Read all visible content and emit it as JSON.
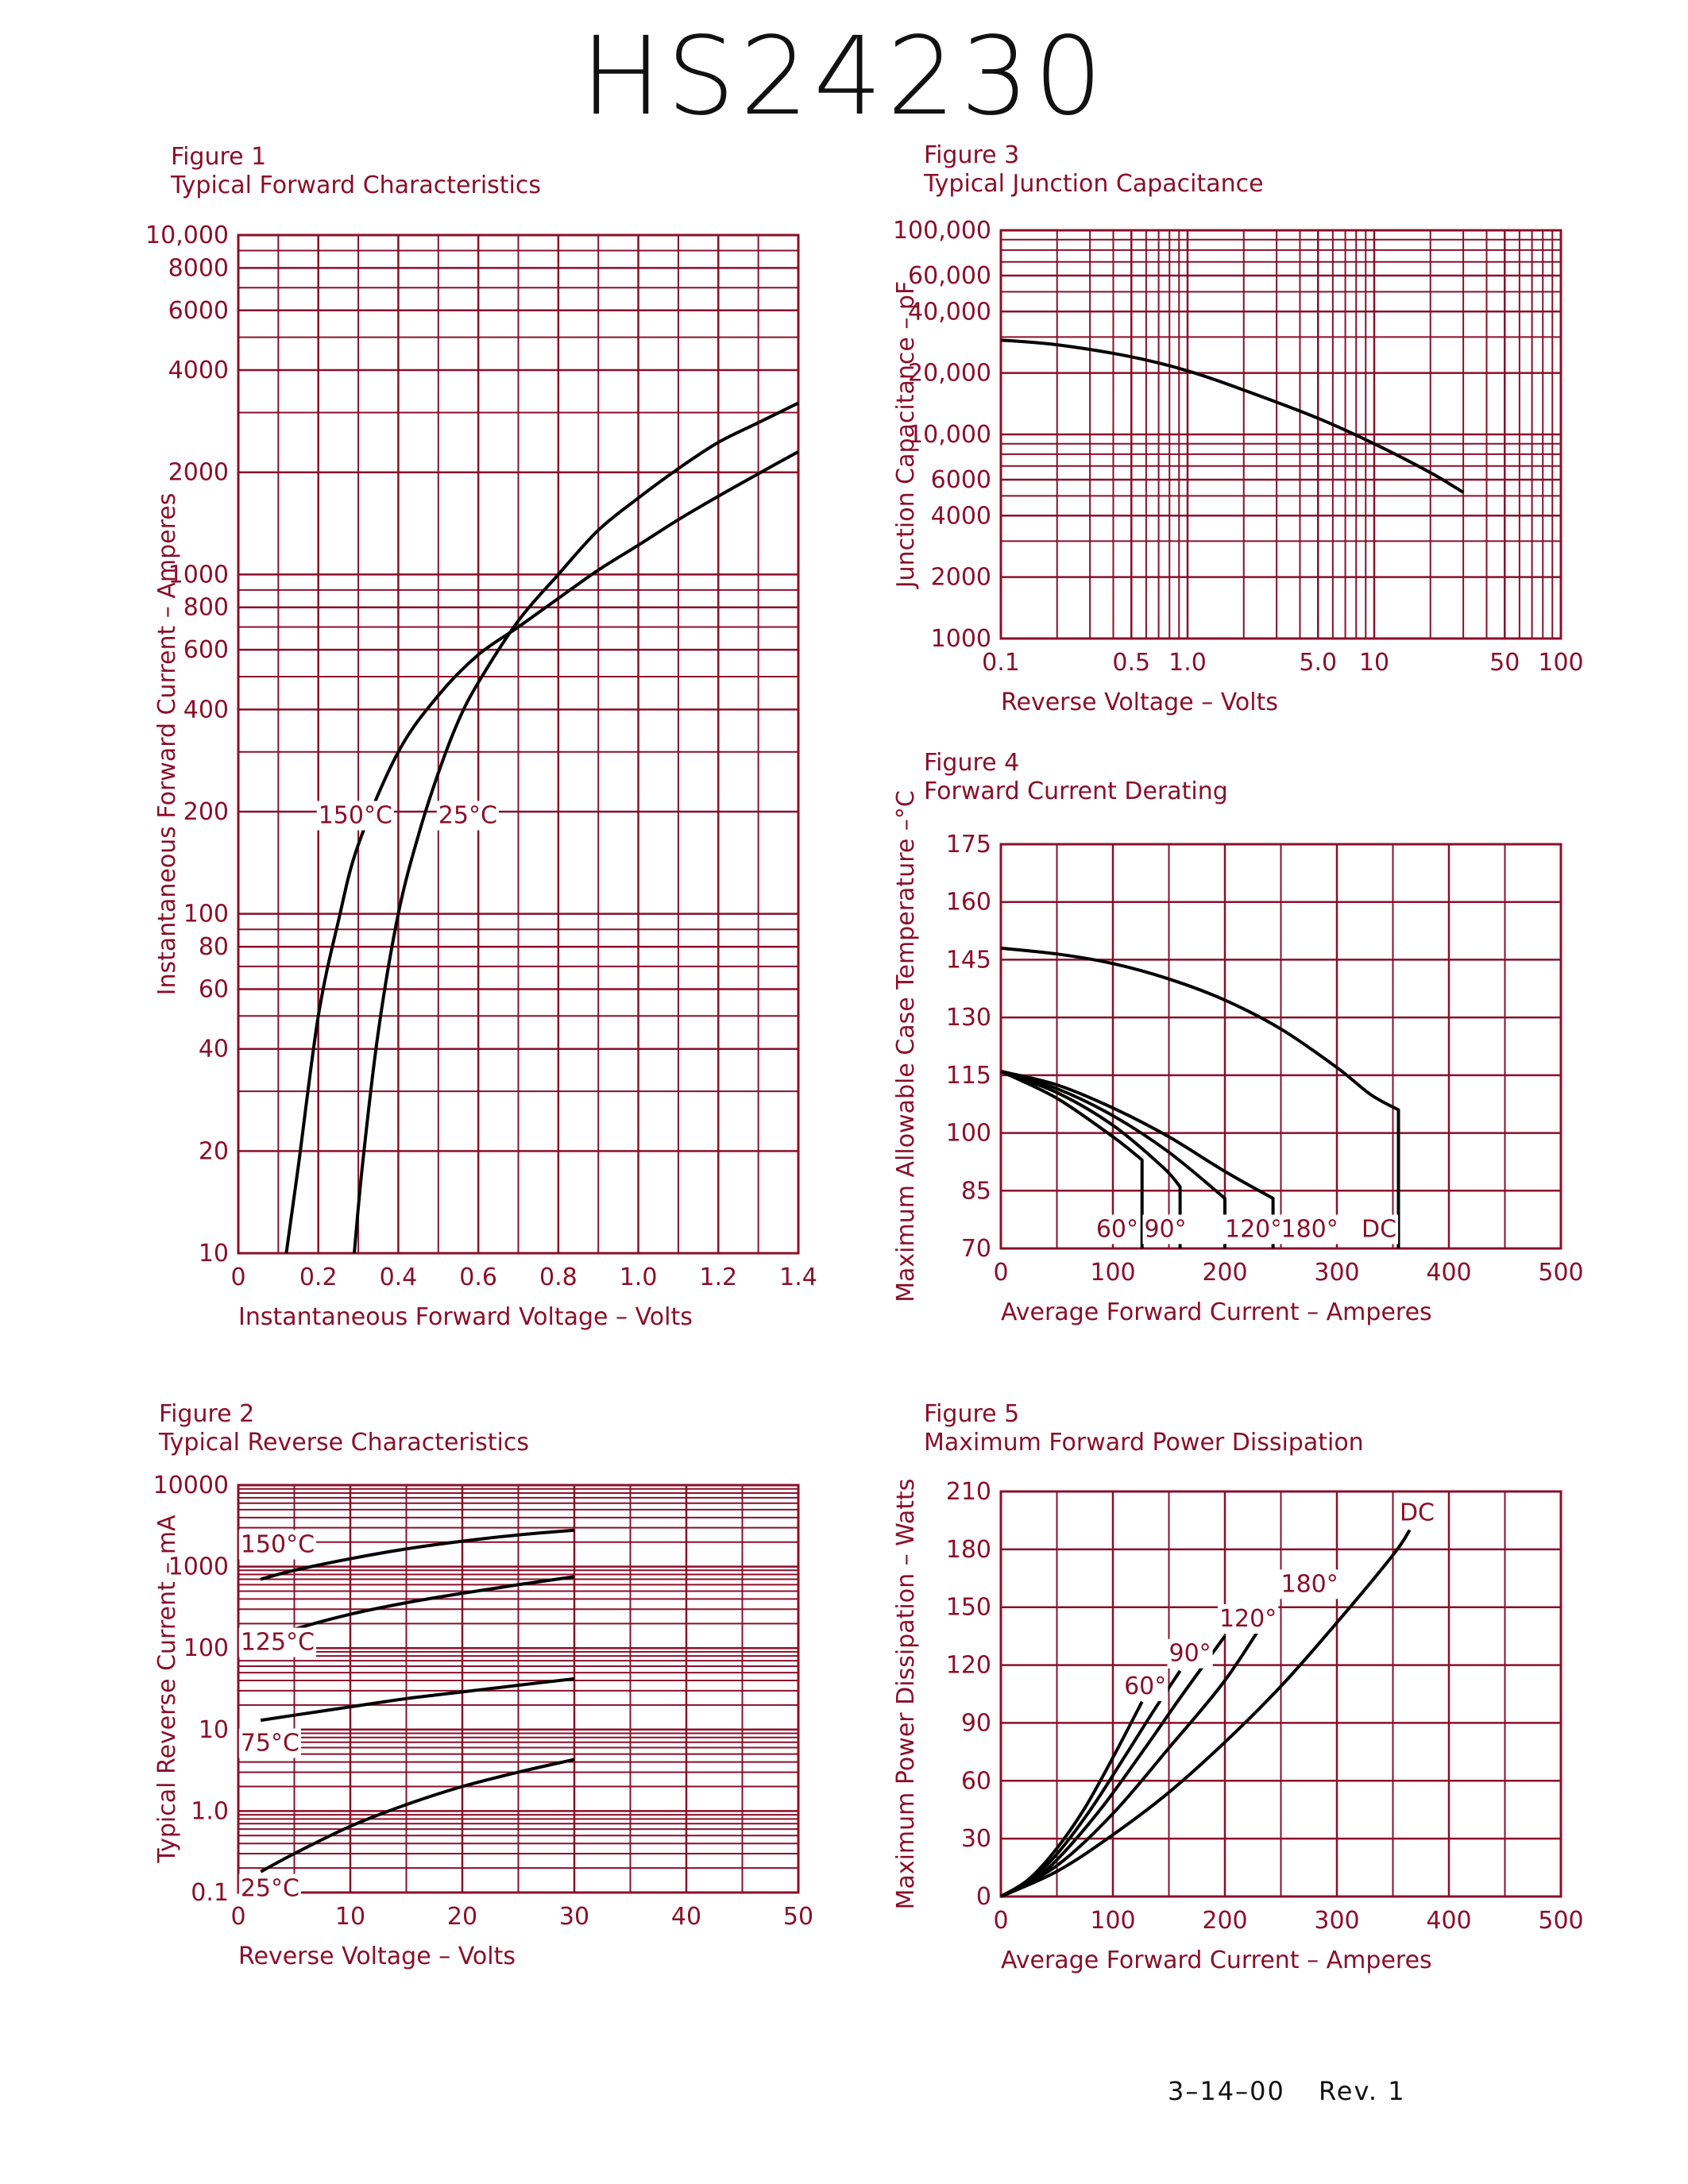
{
  "page_title": "HS24230",
  "footer": {
    "date": "3–14–00",
    "rev": "Rev. 1"
  },
  "colors": {
    "grid": "#8a0f2a",
    "curve": "#000000",
    "text": "#8a0f2a"
  },
  "chart_data": [
    {
      "id": "fig1",
      "type": "line",
      "figure": "Figure 1",
      "title": "Typical Forward Characteristics",
      "xlabel": "Instantaneous Forward Voltage – Volts",
      "ylabel": "Instantaneous Forward Current – Amperes",
      "xscale": "linear",
      "yscale": "log",
      "xlim": [
        0,
        1.4
      ],
      "ylim": [
        10,
        10000
      ],
      "xticks": [
        0,
        0.2,
        0.4,
        0.6,
        0.8,
        1.0,
        1.2,
        1.4
      ],
      "xtick_labels": [
        "0",
        "0.2",
        "0.4",
        "0.6",
        "0.8",
        "1.0",
        "1.2",
        "1.4"
      ],
      "yticks": [
        10,
        20,
        40,
        60,
        80,
        100,
        200,
        400,
        600,
        800,
        1000,
        2000,
        4000,
        6000,
        8000,
        10000
      ],
      "ytick_labels": [
        "10",
        "20",
        "40",
        "60",
        "80",
        "100",
        "200",
        "400",
        "600",
        "800",
        "1000",
        "2000",
        "4000",
        "6000",
        "8000",
        "10,000"
      ],
      "series": [
        {
          "name": "150°C",
          "x": [
            0.12,
            0.15,
            0.2,
            0.25,
            0.3,
            0.4,
            0.5,
            0.6,
            0.7,
            0.8,
            0.9,
            1.0,
            1.1,
            1.2,
            1.3,
            1.4
          ],
          "y": [
            10,
            18,
            50,
            95,
            160,
            300,
            440,
            580,
            700,
            850,
            1030,
            1220,
            1450,
            1700,
            1980,
            2300
          ]
        },
        {
          "name": "25°C",
          "x": [
            0.29,
            0.31,
            0.35,
            0.4,
            0.45,
            0.5,
            0.55,
            0.6,
            0.7,
            0.8,
            0.9,
            1.0,
            1.1,
            1.2,
            1.3,
            1.4
          ],
          "y": [
            10,
            18,
            45,
            100,
            170,
            260,
            370,
            480,
            730,
            1000,
            1350,
            1680,
            2050,
            2450,
            2800,
            3200
          ]
        }
      ],
      "annotations": [
        {
          "text": "150°C",
          "x": 0.2,
          "y": 185
        },
        {
          "text": "25°C",
          "x": 0.5,
          "y": 185
        }
      ]
    },
    {
      "id": "fig2",
      "type": "line",
      "figure": "Figure 2",
      "title": "Typical Reverse Characteristics",
      "xlabel": "Reverse Voltage – Volts",
      "ylabel": "Typical Reverse Current – mA",
      "xscale": "linear",
      "yscale": "log",
      "xlim": [
        0,
        50
      ],
      "ylim": [
        0.1,
        10000
      ],
      "xticks": [
        0,
        10,
        20,
        30,
        40,
        50
      ],
      "xtick_labels": [
        "0",
        "10",
        "20",
        "30",
        "40",
        "50"
      ],
      "yticks": [
        0.1,
        1,
        10,
        100,
        1000,
        10000
      ],
      "ytick_labels": [
        "0.1",
        "1.0",
        "10",
        "100",
        "1000",
        "10000"
      ],
      "series": [
        {
          "name": "150°C",
          "x": [
            2,
            5,
            10,
            15,
            20,
            25,
            30
          ],
          "y": [
            700,
            900,
            1250,
            1650,
            2050,
            2450,
            2800
          ]
        },
        {
          "name": "125°C",
          "x": [
            2,
            5,
            10,
            15,
            20,
            25,
            30
          ],
          "y": [
            120,
            170,
            260,
            360,
            470,
            600,
            750
          ]
        },
        {
          "name": "75°C",
          "x": [
            2,
            5,
            10,
            15,
            20,
            25,
            30
          ],
          "y": [
            13,
            15,
            19,
            24,
            29,
            35,
            42
          ]
        },
        {
          "name": "25°C",
          "x": [
            2,
            5,
            10,
            15,
            20,
            25,
            30
          ],
          "y": [
            0.18,
            0.3,
            0.65,
            1.2,
            2.0,
            3.0,
            4.3
          ]
        }
      ],
      "annotations": [
        {
          "text": "150°C",
          "x": 0.2,
          "y": 1500
        },
        {
          "text": "125°C",
          "x": 0.2,
          "y": 95
        },
        {
          "text": "75°C",
          "x": 0.2,
          "y": 5.5
        },
        {
          "text": "25°C",
          "x": 0.2,
          "y": 0.09
        }
      ]
    },
    {
      "id": "fig3",
      "type": "line",
      "figure": "Figure 3",
      "title": "Typical Junction Capacitance",
      "xlabel": "Reverse Voltage – Volts",
      "ylabel": "Junction Capacitance – pF",
      "xscale": "log",
      "yscale": "log",
      "xlim": [
        0.1,
        100
      ],
      "ylim": [
        1000,
        100000
      ],
      "xticks": [
        0.1,
        0.5,
        1.0,
        5.0,
        10,
        50,
        100
      ],
      "xtick_labels": [
        "0.1",
        "0.5",
        "1.0",
        "5.0",
        "10",
        "50",
        "100"
      ],
      "yticks": [
        1000,
        2000,
        4000,
        6000,
        10000,
        20000,
        40000,
        60000,
        100000
      ],
      "ytick_labels": [
        "1000",
        "2000",
        "4000",
        "6000",
        "10,000",
        "20,000",
        "40,000",
        "60,000",
        "100,000"
      ],
      "series": [
        {
          "name": "",
          "x": [
            0.1,
            0.2,
            0.5,
            1.0,
            2.0,
            5.0,
            10,
            20,
            30
          ],
          "y": [
            29000,
            27500,
            24000,
            20500,
            16500,
            12000,
            9000,
            6500,
            5200
          ]
        }
      ]
    },
    {
      "id": "fig4",
      "type": "line",
      "figure": "Figure 4",
      "title": "Forward Current Derating",
      "xlabel": "Average Forward Current – Amperes",
      "ylabel": "Maximum Allowable Case Temperature –°C",
      "xscale": "linear",
      "yscale": "linear",
      "xlim": [
        0,
        500
      ],
      "ylim": [
        70,
        175
      ],
      "xticks": [
        0,
        100,
        200,
        300,
        400,
        500
      ],
      "xtick_labels": [
        "0",
        "100",
        "200",
        "300",
        "400",
        "500"
      ],
      "yticks": [
        70,
        85,
        100,
        115,
        130,
        145,
        160,
        175
      ],
      "ytick_labels": [
        "70",
        "85",
        "100",
        "115",
        "130",
        "145",
        "160",
        "175"
      ],
      "series": [
        {
          "name": "DC",
          "x": [
            0,
            50,
            100,
            150,
            200,
            250,
            300,
            330,
            355,
            355
          ],
          "y": [
            148,
            146.5,
            144,
            140,
            134.5,
            127,
            117,
            110,
            106,
            70
          ]
        },
        {
          "name": "180°",
          "x": [
            0,
            50,
            100,
            150,
            200,
            243,
            243
          ],
          "y": [
            116,
            112.5,
            106.5,
            99,
            90,
            83,
            70
          ]
        },
        {
          "name": "120°",
          "x": [
            0,
            50,
            100,
            150,
            200,
            200
          ],
          "y": [
            116,
            111.5,
            104.5,
            95,
            83,
            70
          ]
        },
        {
          "name": "90°",
          "x": [
            0,
            50,
            100,
            145,
            160,
            160
          ],
          "y": [
            116,
            110.5,
            102,
            91,
            86,
            70
          ]
        },
        {
          "name": "60°",
          "x": [
            0,
            50,
            100,
            126,
            126
          ],
          "y": [
            116,
            109,
            99,
            93,
            70
          ]
        }
      ],
      "annotations": [
        {
          "text": "60°",
          "x": 85,
          "y": 73
        },
        {
          "text": "90°",
          "x": 128,
          "y": 73
        },
        {
          "text": "120°",
          "x": 200,
          "y": 73
        },
        {
          "text": "180°",
          "x": 250,
          "y": 73
        },
        {
          "text": "DC",
          "x": 322,
          "y": 73
        }
      ]
    },
    {
      "id": "fig5",
      "type": "line",
      "figure": "Figure 5",
      "title": "Maximum Forward Power Dissipation",
      "xlabel": "Average Forward Current – Amperes",
      "ylabel": "Maximum Power Dissipation – Watts",
      "xscale": "linear",
      "yscale": "linear",
      "xlim": [
        0,
        500
      ],
      "ylim": [
        0,
        210
      ],
      "xticks": [
        0,
        100,
        200,
        300,
        400,
        500
      ],
      "xtick_labels": [
        "0",
        "100",
        "200",
        "300",
        "400",
        "500"
      ],
      "yticks": [
        0,
        30,
        60,
        90,
        120,
        150,
        180,
        210
      ],
      "ytick_labels": [
        "0",
        "30",
        "60",
        "90",
        "120",
        "150",
        "180",
        "210"
      ],
      "series": [
        {
          "name": "60°",
          "x": [
            0,
            25,
            50,
            75,
            100,
            126
          ],
          "y": [
            0,
            9,
            25,
            46,
            72,
            101
          ]
        },
        {
          "name": "90°",
          "x": [
            0,
            25,
            50,
            80,
            110,
            135,
            160
          ],
          "y": [
            0,
            8,
            22,
            45,
            72,
            95,
            117
          ]
        },
        {
          "name": "120°",
          "x": [
            0,
            25,
            50,
            90,
            130,
            160,
            200
          ],
          "y": [
            0,
            7,
            19,
            46,
            78,
            103,
            135
          ]
        },
        {
          "name": "180°",
          "x": [
            0,
            50,
            100,
            150,
            200,
            243
          ],
          "y": [
            0,
            16,
            43,
            77,
            112,
            150
          ]
        },
        {
          "name": "DC",
          "x": [
            0,
            50,
            100,
            150,
            200,
            250,
            300,
            350,
            365
          ],
          "y": [
            0,
            13,
            32,
            54,
            80,
            109,
            142,
            177,
            190
          ]
        }
      ],
      "annotations": [
        {
          "text": "60°",
          "x": 110,
          "y": 105
        },
        {
          "text": "90°",
          "x": 150,
          "y": 122
        },
        {
          "text": "120°",
          "x": 195,
          "y": 140
        },
        {
          "text": "180°",
          "x": 250,
          "y": 158
        },
        {
          "text": "DC",
          "x": 356,
          "y": 195
        }
      ]
    }
  ]
}
